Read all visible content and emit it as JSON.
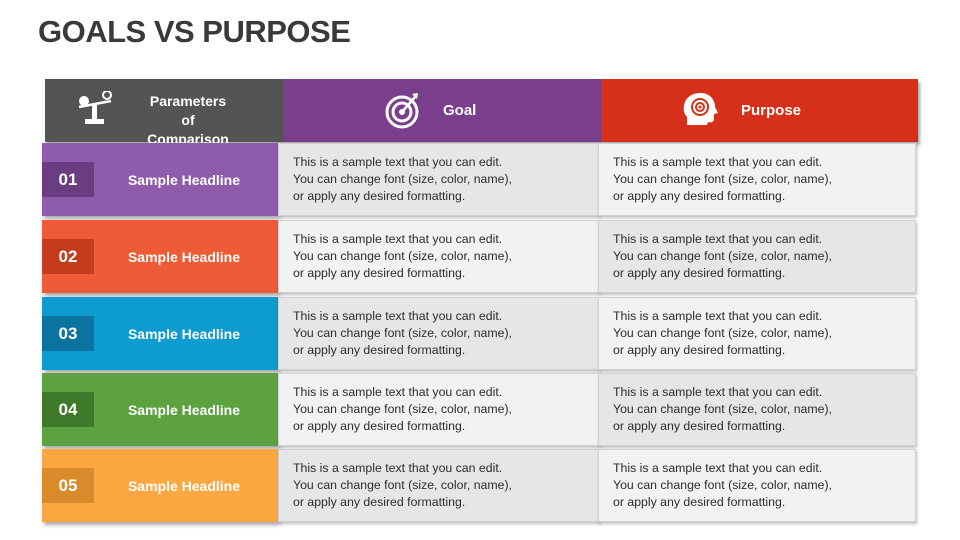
{
  "title": "GOALS VS PURPOSE",
  "header": {
    "parameters_label_line1": "Parameters of",
    "parameters_label_line2": "Comparison",
    "goal_label": "Goal",
    "purpose_label": "Purpose",
    "parameters_icon": "balance-scale-icon",
    "goal_icon": "target-arrow-icon",
    "purpose_icon": "head-target-icon",
    "colors": {
      "parameters": "#545454",
      "goal": "#7a3f8c",
      "purpose": "#d7301a"
    }
  },
  "rows": [
    {
      "number": "01",
      "headline": "Sample Headline",
      "color": "#8f5bab",
      "num_color": "#6a3c82",
      "cell_bg_goal": "#e6e6e6",
      "cell_bg_purpose": "#f2f2f2",
      "goal_text": [
        "This is a sample text that you can edit.",
        "You can change font (size, color, name),",
        "or apply any desired formatting."
      ],
      "purpose_text": [
        "This is a sample text that you can edit.",
        "You can change font (size, color, name),",
        "or apply any desired formatting."
      ]
    },
    {
      "number": "02",
      "headline": "Sample Headline",
      "color": "#ef5b36",
      "num_color": "#c53c1d",
      "cell_bg_goal": "#f2f2f2",
      "cell_bg_purpose": "#e6e6e6",
      "goal_text": [
        "This is a sample text that you can edit.",
        "You can change font (size, color, name),",
        "or apply any desired formatting."
      ],
      "purpose_text": [
        "This is a sample text that you can edit.",
        "You can change font (size, color, name),",
        "or apply any desired formatting."
      ]
    },
    {
      "number": "03",
      "headline": "Sample Headline",
      "color": "#0e9bd0",
      "num_color": "#0a73a0",
      "cell_bg_goal": "#e6e6e6",
      "cell_bg_purpose": "#f2f2f2",
      "goal_text": [
        "This is a sample text that you can edit.",
        "You can change font (size, color, name),",
        "or apply any desired formatting."
      ],
      "purpose_text": [
        "This is a sample text that you can edit.",
        "You can change font (size, color, name),",
        "or apply any desired formatting."
      ]
    },
    {
      "number": "04",
      "headline": "Sample Headline",
      "color": "#5da240",
      "num_color": "#3f7a2a",
      "cell_bg_goal": "#f2f2f2",
      "cell_bg_purpose": "#e6e6e6",
      "goal_text": [
        "This is a sample text that you can edit.",
        "You can change font (size, color, name),",
        "or apply any desired formatting."
      ],
      "purpose_text": [
        "This is a sample text that you can edit.",
        "You can change font (size, color, name),",
        "or apply any desired formatting."
      ]
    },
    {
      "number": "05",
      "headline": "Sample Headline",
      "color": "#fca741",
      "num_color": "#d98a2a",
      "cell_bg_goal": "#e6e6e6",
      "cell_bg_purpose": "#f2f2f2",
      "goal_text": [
        "This is a sample text that you can edit.",
        "You can change font (size, color, name),",
        "or apply any desired formatting."
      ],
      "purpose_text": [
        "This is a sample text that you can edit.",
        "You can change font (size, color, name),",
        "or apply any desired formatting."
      ]
    }
  ]
}
